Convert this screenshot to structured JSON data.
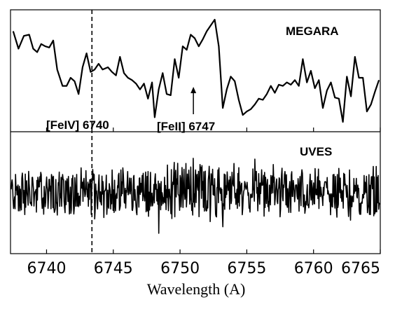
{
  "chart_data": {
    "type": "line",
    "xlabel": "Wavelength (A)",
    "xlim": [
      6737.3,
      6765
    ],
    "xticks": [
      6740,
      6745,
      6750,
      6755,
      6760,
      6765
    ],
    "xtick_labels": [
      "6740",
      "6745",
      "6750",
      "6755",
      "6760",
      "6765"
    ],
    "vline_x": 6743.4,
    "arrow_x": 6751.0,
    "annotations": [
      "[FeIV] 6740",
      "[FeII] 6747"
    ],
    "panels": [
      {
        "label": "MEGARA",
        "ylim": [
          0,
          1
        ],
        "series": [
          {
            "x": [
              6737.5,
              6737.9,
              6738.3,
              6738.7,
              6739.0,
              6739.3,
              6739.6,
              6739.9,
              6740.2,
              6740.5,
              6740.8,
              6741.2,
              6741.5,
              6741.8,
              6742.1,
              6742.4,
              6742.7,
              6743.0,
              6743.3,
              6743.6,
              6743.9,
              6744.2,
              6744.6,
              6744.9,
              6745.2,
              6745.5,
              6745.8,
              6746.1,
              6746.4,
              6746.7,
              6747.0,
              6747.3,
              6747.6,
              6747.9,
              6748.1,
              6748.4,
              6748.7,
              6749.0,
              6749.3,
              6749.6,
              6749.9,
              6750.2,
              6750.5,
              6750.8,
              6751.1,
              6751.4,
              6751.7,
              6752.0,
              6752.3,
              6752.6,
              6752.9,
              6753.2,
              6753.5,
              6753.8,
              6754.1,
              6754.4,
              6754.7,
              6755.0,
              6755.3,
              6755.6,
              6755.9,
              6756.2,
              6756.5,
              6756.8,
              6757.1,
              6757.4,
              6757.7,
              6758.0,
              6758.3,
              6758.6,
              6758.9,
              6759.2,
              6759.5,
              6759.8,
              6760.1,
              6760.4,
              6760.7,
              6761.0,
              6761.3,
              6761.6,
              6761.9,
              6762.2,
              6762.5,
              6762.8,
              6763.1,
              6763.4,
              6763.7,
              6764.0,
              6764.3,
              6764.6,
              6764.9
            ],
            "y": [
              0.84,
              0.69,
              0.8,
              0.81,
              0.69,
              0.66,
              0.73,
              0.71,
              0.7,
              0.76,
              0.51,
              0.37,
              0.37,
              0.44,
              0.41,
              0.3,
              0.53,
              0.65,
              0.49,
              0.51,
              0.56,
              0.51,
              0.53,
              0.49,
              0.46,
              0.62,
              0.48,
              0.44,
              0.42,
              0.39,
              0.34,
              0.39,
              0.26,
              0.4,
              0.1,
              0.34,
              0.48,
              0.3,
              0.29,
              0.6,
              0.44,
              0.71,
              0.68,
              0.81,
              0.78,
              0.71,
              0.77,
              0.84,
              0.89,
              0.94,
              0.71,
              0.18,
              0.34,
              0.45,
              0.41,
              0.25,
              0.12,
              0.15,
              0.17,
              0.21,
              0.26,
              0.25,
              0.3,
              0.37,
              0.31,
              0.38,
              0.37,
              0.4,
              0.38,
              0.42,
              0.37,
              0.6,
              0.4,
              0.5,
              0.35,
              0.42,
              0.18,
              0.33,
              0.4,
              0.27,
              0.26,
              0.06,
              0.45,
              0.28,
              0.62,
              0.44,
              0.44,
              0.15,
              0.21,
              0.32,
              0.42
            ]
          }
        ]
      },
      {
        "label": "UVES",
        "ylim": [
          0,
          1
        ],
        "series": [
          {
            "x": [],
            "y": []
          }
        ]
      }
    ]
  }
}
